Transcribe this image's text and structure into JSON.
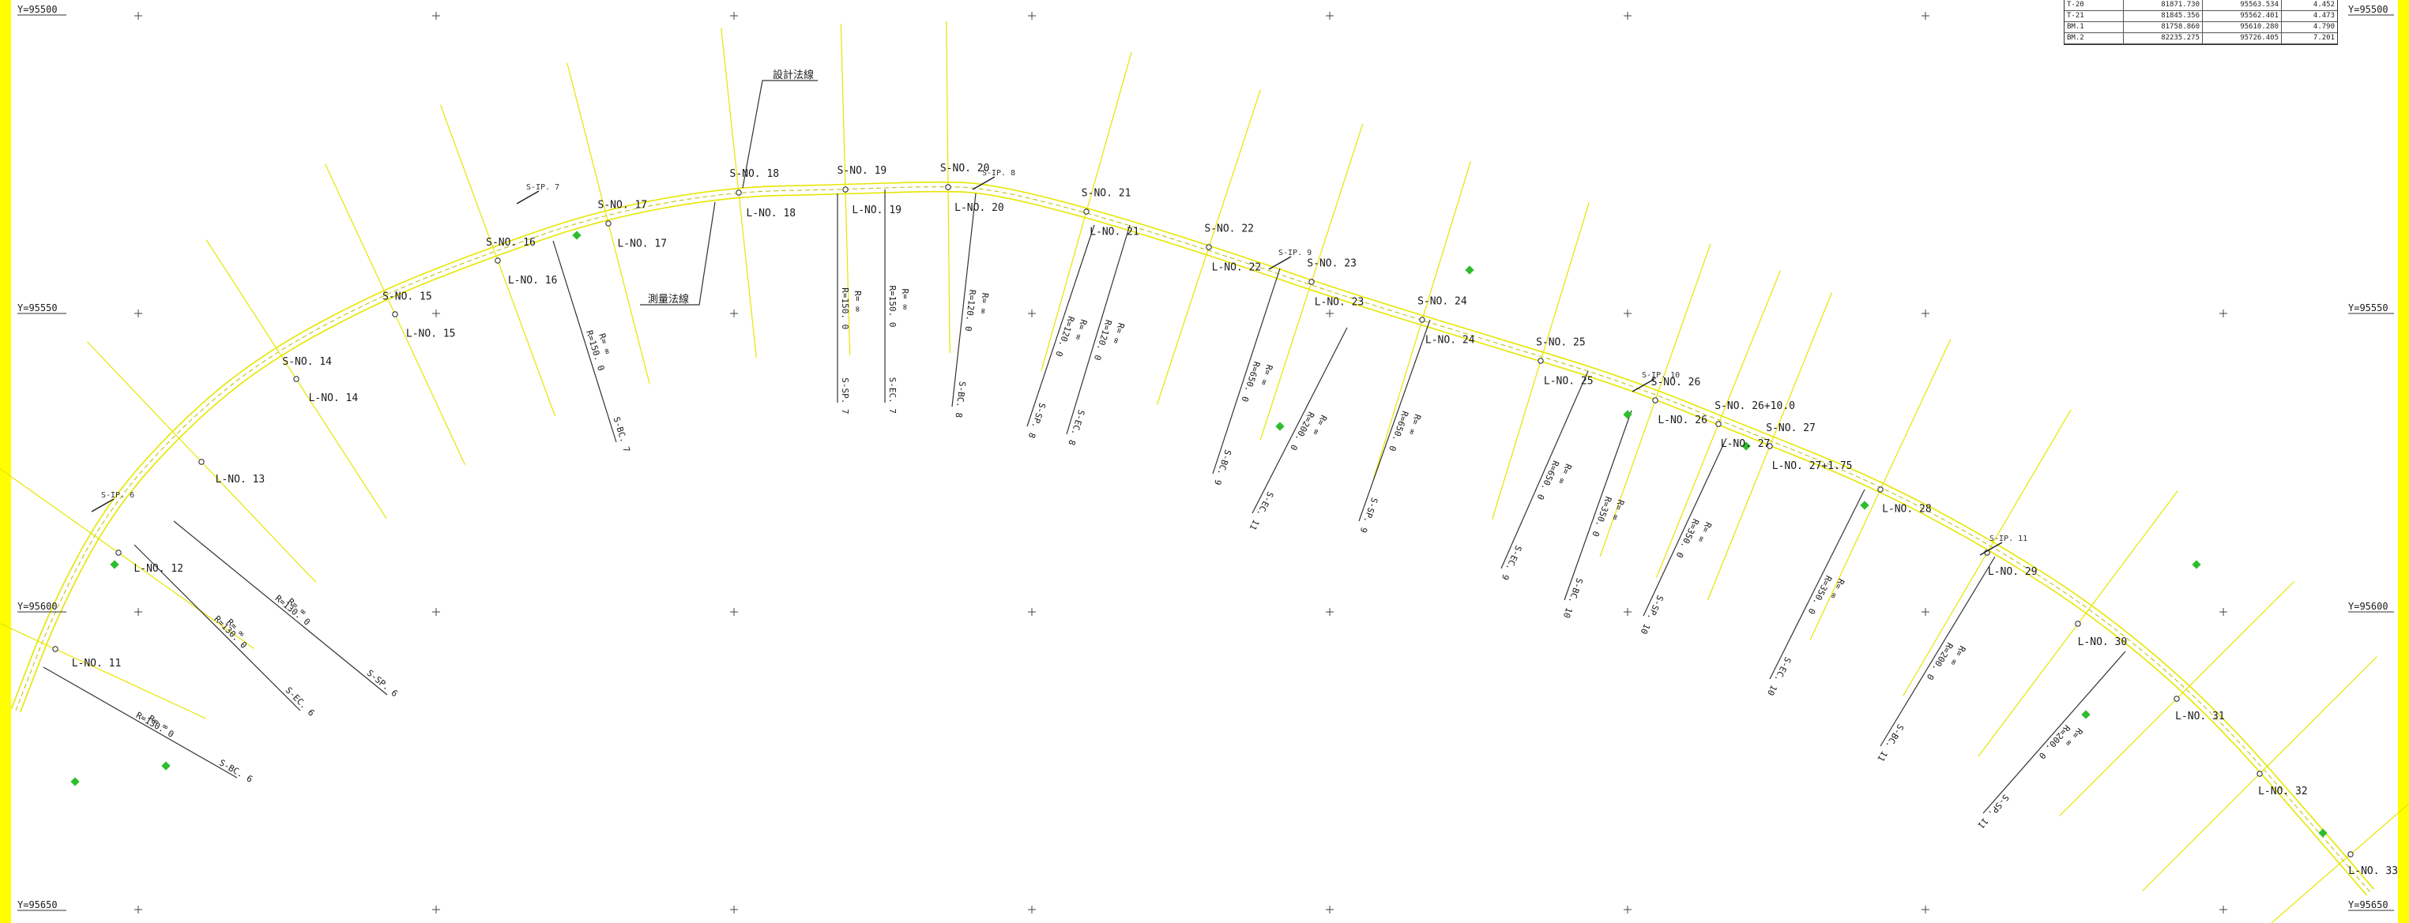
{
  "colors": {
    "frame": "#ffff00",
    "road": "#e6e600",
    "line": "#333333",
    "green": "#2ebd2e"
  },
  "grid_labels": [
    {
      "left": "Y=95500",
      "right": "Y=95500"
    },
    {
      "left": "Y=95550",
      "right": "Y=95550"
    },
    {
      "left": "Y=95600",
      "right": "Y=95600"
    },
    {
      "left": "Y=95650",
      "right": "Y=95650"
    }
  ],
  "callouts": {
    "design": "設計法線",
    "survey": "測量法線"
  },
  "coord_table": [
    [
      "T-20",
      "81871.730",
      "95563.534",
      "4.452"
    ],
    [
      "T-21",
      "81845.356",
      "95562.401",
      "4.473"
    ],
    [
      "BM.1",
      "81758.860",
      "95610.280",
      "4.790"
    ],
    [
      "BM.2",
      "82235.275",
      "95726.405",
      "7.201"
    ]
  ],
  "stations": [
    {
      "s": "",
      "l": "L-NO. 11"
    },
    {
      "s": "",
      "l": "L-NO. 12"
    },
    {
      "s": "",
      "l": "L-NO. 13"
    },
    {
      "s": "S-NO. 14",
      "l": "L-NO. 14"
    },
    {
      "s": "S-NO. 15",
      "l": "L-NO. 15"
    },
    {
      "s": "S-NO. 16",
      "l": "L-NO. 16"
    },
    {
      "s": "S-NO. 17",
      "l": "L-NO. 17"
    },
    {
      "s": "S-NO. 18",
      "l": "L-NO. 18"
    },
    {
      "s": "S-NO. 19",
      "l": "L-NO. 19"
    },
    {
      "s": "S-NO. 20",
      "l": "L-NO. 20"
    },
    {
      "s": "S-NO. 21",
      "l": "L-NO. 21"
    },
    {
      "s": "S-NO. 22",
      "l": "L-NO. 22"
    },
    {
      "s": "S-NO. 23",
      "l": "L-NO. 23"
    },
    {
      "s": "S-NO. 24",
      "l": "L-NO. 24"
    },
    {
      "s": "S-NO. 25",
      "l": "L-NO. 25"
    },
    {
      "s": "S-NO. 26",
      "l": "L-NO. 26"
    },
    {
      "s": "S-NO. 26+10.0",
      "l": "L-NO. 27"
    },
    {
      "s": "S-NO. 27",
      "l": "L-NO. 27+1.75"
    },
    {
      "s": "",
      "l": "L-NO. 28"
    },
    {
      "s": "",
      "l": "L-NO. 29"
    },
    {
      "s": "",
      "l": "L-NO. 30"
    },
    {
      "s": "",
      "l": "L-NO. 31"
    },
    {
      "s": "",
      "l": "L-NO. 32"
    },
    {
      "s": "",
      "l": "L-NO. 33"
    }
  ],
  "ip_labels": [
    "S-IP. 6",
    "S-IP. 7",
    "S-IP. 8",
    "S-IP. 9",
    "S-IP. 10",
    "S-IP. 11"
  ],
  "curves": [
    {
      "r": "R=130. 0",
      "a": "S-BC. 6"
    },
    {
      "r": "R=130. 0",
      "a": "S-EC. 6"
    },
    {
      "r": "R=130. 0",
      "a": "S-SP. 6"
    },
    {
      "r": "R=150. 0",
      "a": "S-BC. 7"
    },
    {
      "r": "R=150. 0",
      "a": "S-SP. 7"
    },
    {
      "r": "R=150. 0",
      "a": "S-EC. 7"
    },
    {
      "r": "R=120. 0",
      "a": "S-BC. 8"
    },
    {
      "r": "R=120. 0",
      "a": "S-SP. 8"
    },
    {
      "r": "R=120. 0",
      "a": "S-EC. 8"
    },
    {
      "r": "R=650. 0",
      "a": "S-BC. 9"
    },
    {
      "r": "R=650. 0",
      "a": "S-SP. 9"
    },
    {
      "r": "R=650. 0",
      "a": "S-EC. 9"
    },
    {
      "r": "R=350. 0",
      "a": "S-BC. 10"
    },
    {
      "r": "R=350. 0",
      "a": "S-SP. 10"
    },
    {
      "r": "R=350. 0",
      "a": "S-EC. 10"
    },
    {
      "r": "R=200. 0",
      "a": "S-BC. 11"
    },
    {
      "r": "R=200. 0",
      "a": "S-SP. 11"
    },
    {
      "r": "R=200. 0",
      "a": "S-EC. 11"
    }
  ],
  "r_inf": "R= ∞"
}
